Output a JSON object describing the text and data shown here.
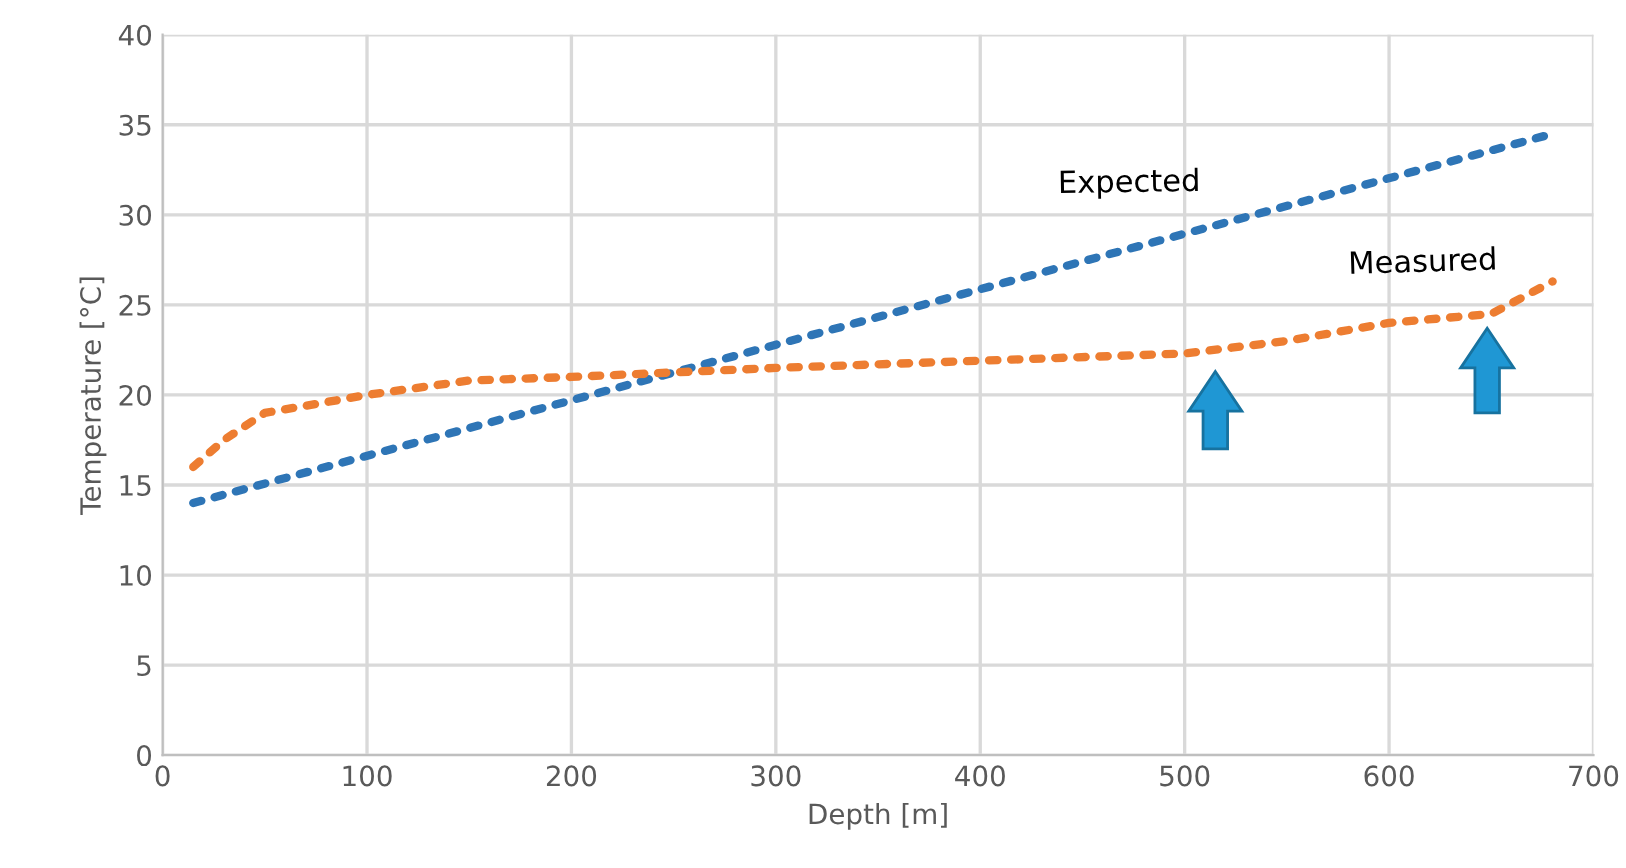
{
  "chart_data": {
    "type": "line",
    "xlabel": "Depth [m]",
    "ylabel": "Temperature [°C]",
    "xlim": [
      0,
      700
    ],
    "xticks": [
      0,
      100,
      200,
      300,
      400,
      500,
      600,
      700
    ],
    "ylim": [
      0,
      40
    ],
    "yticks": [
      0,
      5,
      10,
      15,
      20,
      25,
      30,
      35,
      40
    ],
    "grid": true,
    "line_style": "dotted",
    "legend": false,
    "series": [
      {
        "name": "Expected",
        "color": "#2e75b6",
        "x": [
          15,
          680
        ],
        "values": [
          14,
          34.5
        ]
      },
      {
        "name": "Measured",
        "color": "#ed7d31",
        "x": [
          15,
          30,
          50,
          100,
          150,
          200,
          300,
          400,
          500,
          550,
          600,
          650,
          680
        ],
        "values": [
          16,
          17.5,
          19,
          20,
          20.8,
          21,
          21.5,
          21.9,
          22.3,
          23,
          24,
          24.5,
          26.3
        ]
      }
    ]
  }
}
